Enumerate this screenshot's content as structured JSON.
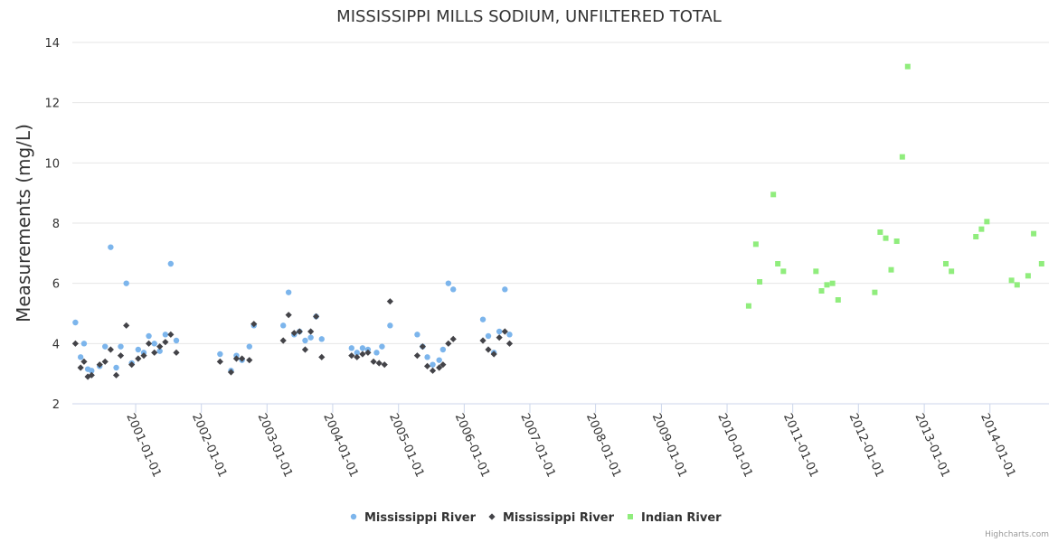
{
  "chart_data": {
    "type": "scatter",
    "title": "MISSISSIPPI MILLS SODIUM, UNFILTERED TOTAL",
    "ylabel": "Measurements (mg/L)",
    "xlabel": "",
    "ylim": [
      2,
      14
    ],
    "yticks": [
      "2",
      "4",
      "6",
      "8",
      "10",
      "12",
      "14"
    ],
    "xaxis_type": "datetime",
    "xlim": [
      "2000-01-15",
      "2014-11-25"
    ],
    "xticks": [
      "2001-01-01",
      "2002-01-01",
      "2003-01-01",
      "2004-01-01",
      "2005-01-01",
      "2006-01-01",
      "2007-01-01",
      "2008-01-01",
      "2009-01-01",
      "2010-01-01",
      "2011-01-01",
      "2012-01-01",
      "2013-01-01",
      "2014-01-01"
    ],
    "grid": true,
    "legend_position": "bottom-center",
    "credits": "Highcharts.com",
    "series": [
      {
        "name": "Mississippi River",
        "marker": "circle",
        "color": "#7cb5ec",
        "points": [
          [
            "2000-02-01",
            4.7
          ],
          [
            "2000-03-01",
            3.55
          ],
          [
            "2000-03-20",
            4.0
          ],
          [
            "2000-04-10",
            3.15
          ],
          [
            "2000-05-01",
            3.1
          ],
          [
            "2000-06-15",
            3.25
          ],
          [
            "2000-07-15",
            3.9
          ],
          [
            "2000-08-15",
            7.2
          ],
          [
            "2000-09-15",
            3.2
          ],
          [
            "2000-10-10",
            3.9
          ],
          [
            "2000-11-10",
            6.0
          ],
          [
            "2000-12-10",
            3.35
          ],
          [
            "2001-01-15",
            3.8
          ],
          [
            "2001-02-15",
            3.7
          ],
          [
            "2001-03-15",
            4.25
          ],
          [
            "2001-04-15",
            4.0
          ],
          [
            "2001-05-15",
            3.75
          ],
          [
            "2001-06-15",
            4.3
          ],
          [
            "2001-07-15",
            6.65
          ],
          [
            "2001-08-15",
            4.1
          ],
          [
            "2002-04-15",
            3.65
          ],
          [
            "2002-06-15",
            3.1
          ],
          [
            "2002-07-15",
            3.6
          ],
          [
            "2002-08-15",
            3.45
          ],
          [
            "2002-09-25",
            3.9
          ],
          [
            "2002-10-20",
            4.6
          ],
          [
            "2003-04-01",
            4.6
          ],
          [
            "2003-05-01",
            5.7
          ],
          [
            "2003-06-01",
            4.3
          ],
          [
            "2003-07-01",
            4.4
          ],
          [
            "2003-08-01",
            4.1
          ],
          [
            "2003-09-01",
            4.2
          ],
          [
            "2003-10-01",
            4.9
          ],
          [
            "2003-11-01",
            4.15
          ],
          [
            "2004-04-15",
            3.85
          ],
          [
            "2004-05-15",
            3.7
          ],
          [
            "2004-06-15",
            3.85
          ],
          [
            "2004-07-15",
            3.8
          ],
          [
            "2004-09-01",
            3.7
          ],
          [
            "2004-10-01",
            3.9
          ],
          [
            "2004-11-15",
            4.6
          ],
          [
            "2005-04-15",
            4.3
          ],
          [
            "2005-05-15",
            3.9
          ],
          [
            "2005-06-10",
            3.55
          ],
          [
            "2005-07-10",
            3.3
          ],
          [
            "2005-08-15",
            3.45
          ],
          [
            "2005-09-05",
            3.8
          ],
          [
            "2005-10-05",
            6.0
          ],
          [
            "2005-11-01",
            5.8
          ],
          [
            "2006-04-15",
            4.8
          ],
          [
            "2006-05-15",
            4.25
          ],
          [
            "2006-06-15",
            3.7
          ],
          [
            "2006-07-15",
            4.4
          ],
          [
            "2006-08-15",
            5.8
          ],
          [
            "2006-09-10",
            4.3
          ]
        ]
      },
      {
        "name": "Mississippi River",
        "marker": "diamond",
        "color": "#434348",
        "points": [
          [
            "2000-02-01",
            4.0
          ],
          [
            "2000-03-01",
            3.2
          ],
          [
            "2000-03-20",
            3.4
          ],
          [
            "2000-04-10",
            2.9
          ],
          [
            "2000-05-01",
            2.95
          ],
          [
            "2000-06-15",
            3.3
          ],
          [
            "2000-07-15",
            3.4
          ],
          [
            "2000-08-15",
            3.8
          ],
          [
            "2000-09-15",
            2.95
          ],
          [
            "2000-10-10",
            3.6
          ],
          [
            "2000-11-10",
            4.6
          ],
          [
            "2000-12-10",
            3.3
          ],
          [
            "2001-01-15",
            3.5
          ],
          [
            "2001-02-15",
            3.6
          ],
          [
            "2001-03-15",
            4.0
          ],
          [
            "2001-04-15",
            3.7
          ],
          [
            "2001-05-15",
            3.9
          ],
          [
            "2001-06-15",
            4.05
          ],
          [
            "2001-07-15",
            4.3
          ],
          [
            "2001-08-15",
            3.7
          ],
          [
            "2002-04-15",
            3.4
          ],
          [
            "2002-06-15",
            3.05
          ],
          [
            "2002-07-15",
            3.5
          ],
          [
            "2002-08-15",
            3.5
          ],
          [
            "2002-09-25",
            3.45
          ],
          [
            "2002-10-20",
            4.65
          ],
          [
            "2003-04-01",
            4.1
          ],
          [
            "2003-05-01",
            4.95
          ],
          [
            "2003-06-01",
            4.35
          ],
          [
            "2003-07-01",
            4.4
          ],
          [
            "2003-08-01",
            3.8
          ],
          [
            "2003-09-01",
            4.4
          ],
          [
            "2003-10-01",
            4.9
          ],
          [
            "2003-11-01",
            3.55
          ],
          [
            "2004-04-15",
            3.6
          ],
          [
            "2004-05-15",
            3.55
          ],
          [
            "2004-06-15",
            3.65
          ],
          [
            "2004-07-15",
            3.7
          ],
          [
            "2004-08-15",
            3.4
          ],
          [
            "2004-09-15",
            3.35
          ],
          [
            "2004-10-15",
            3.3
          ],
          [
            "2004-11-15",
            5.4
          ],
          [
            "2005-04-15",
            3.6
          ],
          [
            "2005-05-15",
            3.9
          ],
          [
            "2005-06-10",
            3.25
          ],
          [
            "2005-07-10",
            3.1
          ],
          [
            "2005-08-15",
            3.2
          ],
          [
            "2005-09-05",
            3.3
          ],
          [
            "2005-10-05",
            4.0
          ],
          [
            "2005-11-01",
            4.15
          ],
          [
            "2006-04-15",
            4.1
          ],
          [
            "2006-05-15",
            3.8
          ],
          [
            "2006-06-15",
            3.65
          ],
          [
            "2006-07-15",
            4.2
          ],
          [
            "2006-08-15",
            4.4
          ],
          [
            "2006-09-10",
            4.0
          ]
        ]
      },
      {
        "name": "Indian River",
        "marker": "square",
        "color": "#90ed7d",
        "points": [
          [
            "2010-05-01",
            5.25
          ],
          [
            "2010-06-10",
            7.3
          ],
          [
            "2010-07-01",
            6.05
          ],
          [
            "2010-09-15",
            8.95
          ],
          [
            "2010-10-10",
            6.65
          ],
          [
            "2010-11-10",
            6.4
          ],
          [
            "2011-05-10",
            6.4
          ],
          [
            "2011-06-10",
            5.75
          ],
          [
            "2011-07-10",
            5.95
          ],
          [
            "2011-08-10",
            6.0
          ],
          [
            "2011-09-10",
            5.45
          ],
          [
            "2012-04-01",
            5.7
          ],
          [
            "2012-05-01",
            7.7
          ],
          [
            "2012-06-01",
            7.5
          ],
          [
            "2012-07-01",
            6.45
          ],
          [
            "2012-08-01",
            7.4
          ],
          [
            "2012-09-01",
            10.2
          ],
          [
            "2012-10-01",
            13.2
          ],
          [
            "2013-05-01",
            6.65
          ],
          [
            "2013-06-01",
            6.4
          ],
          [
            "2013-10-15",
            7.55
          ],
          [
            "2013-11-15",
            7.8
          ],
          [
            "2013-12-15",
            8.05
          ],
          [
            "2014-05-01",
            6.1
          ],
          [
            "2014-06-01",
            5.95
          ],
          [
            "2014-08-01",
            6.25
          ],
          [
            "2014-09-01",
            7.65
          ],
          [
            "2014-10-15",
            6.65
          ]
        ]
      }
    ]
  }
}
